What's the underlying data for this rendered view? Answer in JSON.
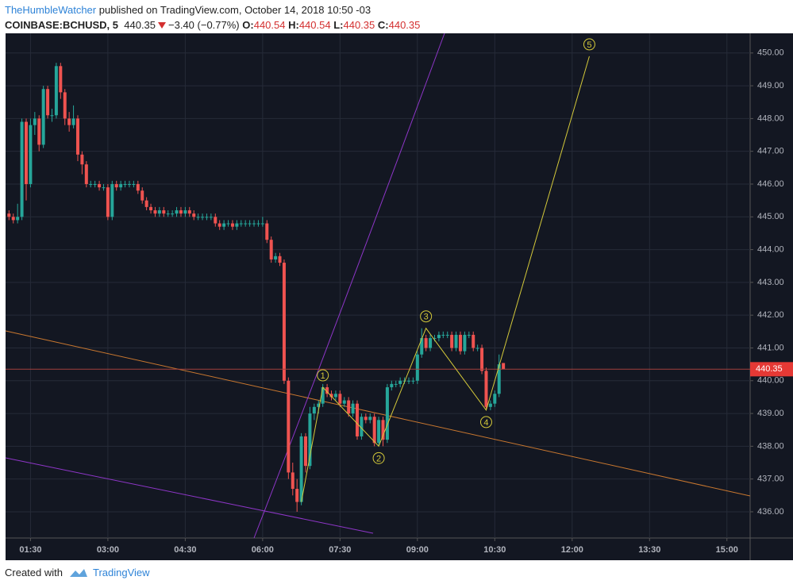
{
  "header": {
    "author": "TheHumbleWatcher",
    "published": "published on TradingView.com, October 14, 2018 10:50 -03",
    "symbol": "COINBASE:BCHUSD, 5",
    "price": 440.35,
    "change": "−3.40 (−0.77%)",
    "ohlc": [
      {
        "label": "O:",
        "value": 440.54
      },
      {
        "label": "H:",
        "value": 440.54
      },
      {
        "label": "L:",
        "value": 440.35
      },
      {
        "label": "C:",
        "value": 440.35
      }
    ]
  },
  "footer": {
    "text": "Created with",
    "brand": "TradingView"
  },
  "chart_data": {
    "type": "candlestick",
    "up_color": "#26a69a",
    "down_color": "#ef5350",
    "grid": true,
    "xlim": [
      61,
      927
    ],
    "ylim": [
      435.2,
      450.6
    ],
    "xticks": [
      {
        "value": 90,
        "label": "01:30"
      },
      {
        "value": 180,
        "label": "03:00"
      },
      {
        "value": 270,
        "label": "04:30"
      },
      {
        "value": 360,
        "label": "06:00"
      },
      {
        "value": 450,
        "label": "07:30"
      },
      {
        "value": 540,
        "label": "09:00"
      },
      {
        "value": 630,
        "label": "10:30"
      },
      {
        "value": 720,
        "label": "12:00"
      },
      {
        "value": 810,
        "label": "13:30"
      },
      {
        "value": 900,
        "label": "15:00"
      }
    ],
    "yticks": [
      {
        "value": 436,
        "label": "436.00"
      },
      {
        "value": 437,
        "label": "437.00"
      },
      {
        "value": 438,
        "label": "438.00"
      },
      {
        "value": 439,
        "label": "439.00"
      },
      {
        "value": 440,
        "label": "440.00"
      },
      {
        "value": 441,
        "label": "441.00"
      },
      {
        "value": 442,
        "label": "442.00"
      },
      {
        "value": 443,
        "label": "443.00"
      },
      {
        "value": 444,
        "label": "444.00"
      },
      {
        "value": 445,
        "label": "445.00"
      },
      {
        "value": 446,
        "label": "446.00"
      },
      {
        "value": 447,
        "label": "447.00"
      },
      {
        "value": 448,
        "label": "448.00"
      },
      {
        "value": 449,
        "label": "449.00"
      },
      {
        "value": 450,
        "label": "450.00"
      }
    ],
    "last_price": 440.35,
    "x": [
      "01:05",
      "01:10",
      "01:15",
      "01:20",
      "01:25",
      "01:30",
      "01:35",
      "01:40",
      "01:45",
      "01:50",
      "01:55",
      "02:00",
      "02:05",
      "02:10",
      "02:15",
      "02:20",
      "02:25",
      "02:30",
      "02:35",
      "02:40",
      "02:45",
      "02:50",
      "02:55",
      "03:00",
      "03:05",
      "03:10",
      "03:15",
      "03:20",
      "03:25",
      "03:30",
      "03:35",
      "03:40",
      "03:45",
      "03:50",
      "03:55",
      "04:00",
      "04:05",
      "04:10",
      "04:15",
      "04:20",
      "04:25",
      "04:30",
      "04:35",
      "04:40",
      "04:45",
      "04:50",
      "04:55",
      "05:00",
      "05:05",
      "05:10",
      "05:15",
      "05:20",
      "05:25",
      "05:30",
      "05:35",
      "05:40",
      "05:45",
      "05:50",
      "05:55",
      "06:00",
      "06:05",
      "06:10",
      "06:15",
      "06:20",
      "06:25",
      "06:30",
      "06:35",
      "06:40",
      "06:45",
      "06:50",
      "06:55",
      "07:00",
      "07:05",
      "07:10",
      "07:15",
      "07:20",
      "07:25",
      "07:30",
      "07:35",
      "07:40",
      "07:45",
      "07:50",
      "07:55",
      "08:00",
      "08:05",
      "08:10",
      "08:15",
      "08:20",
      "08:25",
      "08:30",
      "08:35",
      "08:40",
      "08:45",
      "08:50",
      "08:55",
      "09:00",
      "09:05",
      "09:10",
      "09:15",
      "09:20",
      "09:25",
      "09:30",
      "09:35",
      "09:40",
      "09:45",
      "09:50",
      "09:55",
      "10:00",
      "10:05",
      "10:10",
      "10:15",
      "10:20",
      "10:25",
      "10:30",
      "10:35",
      "10:40"
    ],
    "candles": [
      [
        445.1,
        445.2,
        444.9,
        445.0
      ],
      [
        445.0,
        445.1,
        444.8,
        444.9
      ],
      [
        444.9,
        445.4,
        444.8,
        445.0
      ],
      [
        445.0,
        448.0,
        444.9,
        447.9
      ],
      [
        447.9,
        448.0,
        445.5,
        446.0
      ],
      [
        446.0,
        448.0,
        445.9,
        447.8
      ],
      [
        447.8,
        448.2,
        447.5,
        448.0
      ],
      [
        448.0,
        448.1,
        447.0,
        447.2
      ],
      [
        447.2,
        449.0,
        447.1,
        448.9
      ],
      [
        448.9,
        449.0,
        448.0,
        448.1
      ],
      [
        448.1,
        448.3,
        447.9,
        448.1
      ],
      [
        448.1,
        449.7,
        448.0,
        449.6
      ],
      [
        449.6,
        449.7,
        448.6,
        448.8
      ],
      [
        448.8,
        448.9,
        447.8,
        448.0
      ],
      [
        448.0,
        448.2,
        447.6,
        447.8
      ],
      [
        447.8,
        448.4,
        447.7,
        448.0
      ],
      [
        448.0,
        448.1,
        446.7,
        446.9
      ],
      [
        446.9,
        447.0,
        446.3,
        446.6
      ],
      [
        446.6,
        446.7,
        445.9,
        446.0
      ],
      [
        446.0,
        446.1,
        445.9,
        446.0
      ],
      [
        446.0,
        446.1,
        445.9,
        446.0
      ],
      [
        446.0,
        446.1,
        445.8,
        445.9
      ],
      [
        445.9,
        446.0,
        445.8,
        445.9
      ],
      [
        445.9,
        446.0,
        444.9,
        445.0
      ],
      [
        445.0,
        446.1,
        444.9,
        446.0
      ],
      [
        446.0,
        446.1,
        445.8,
        445.9
      ],
      [
        445.9,
        446.1,
        445.8,
        446.0
      ],
      [
        446.0,
        446.1,
        445.9,
        446.0
      ],
      [
        446.0,
        446.1,
        445.9,
        446.0
      ],
      [
        446.0,
        446.1,
        445.9,
        446.0
      ],
      [
        446.0,
        446.1,
        445.7,
        445.8
      ],
      [
        445.8,
        445.9,
        445.4,
        445.5
      ],
      [
        445.5,
        445.6,
        445.2,
        445.3
      ],
      [
        445.3,
        445.4,
        445.1,
        445.2
      ],
      [
        445.2,
        445.3,
        445.0,
        445.1
      ],
      [
        445.1,
        445.3,
        445.0,
        445.2
      ],
      [
        445.2,
        445.3,
        445.0,
        445.1
      ],
      [
        445.1,
        445.2,
        445.0,
        445.1
      ],
      [
        445.1,
        445.2,
        445.0,
        445.1
      ],
      [
        445.1,
        445.3,
        445.0,
        445.2
      ],
      [
        445.2,
        445.3,
        445.0,
        445.1
      ],
      [
        445.1,
        445.3,
        445.0,
        445.2
      ],
      [
        445.2,
        445.3,
        445.0,
        445.1
      ],
      [
        445.1,
        445.2,
        444.9,
        445.0
      ],
      [
        445.0,
        445.1,
        444.9,
        445.0
      ],
      [
        445.0,
        445.1,
        444.9,
        445.0
      ],
      [
        445.0,
        445.1,
        444.9,
        445.0
      ],
      [
        445.0,
        445.1,
        444.9,
        445.0
      ],
      [
        445.0,
        445.1,
        444.7,
        444.8
      ],
      [
        444.8,
        444.9,
        444.6,
        444.7
      ],
      [
        444.7,
        444.9,
        444.6,
        444.8
      ],
      [
        444.8,
        444.9,
        444.7,
        444.8
      ],
      [
        444.8,
        444.9,
        444.6,
        444.7
      ],
      [
        444.7,
        444.9,
        444.6,
        444.8
      ],
      [
        444.8,
        444.9,
        444.7,
        444.8
      ],
      [
        444.8,
        444.9,
        444.7,
        444.8
      ],
      [
        444.8,
        444.9,
        444.7,
        444.8
      ],
      [
        444.8,
        444.9,
        444.7,
        444.8
      ],
      [
        444.8,
        444.9,
        444.7,
        444.8
      ],
      [
        444.8,
        445.0,
        444.7,
        444.8
      ],
      [
        444.8,
        444.9,
        444.2,
        444.3
      ],
      [
        444.3,
        444.4,
        443.6,
        443.7
      ],
      [
        443.7,
        443.9,
        443.6,
        443.8
      ],
      [
        443.8,
        443.9,
        443.5,
        443.6
      ],
      [
        443.6,
        443.7,
        439.9,
        440.0
      ],
      [
        440.0,
        440.1,
        437.0,
        437.2
      ],
      [
        437.2,
        437.5,
        436.5,
        436.7
      ],
      [
        436.7,
        437.0,
        436.0,
        436.3
      ],
      [
        436.3,
        438.4,
        436.2,
        438.3
      ],
      [
        438.3,
        438.4,
        437.2,
        437.4
      ],
      [
        437.4,
        439.2,
        437.3,
        439.0
      ],
      [
        439.0,
        439.3,
        438.8,
        439.2
      ],
      [
        439.2,
        439.4,
        439.0,
        439.3
      ],
      [
        439.3,
        439.9,
        439.2,
        439.8
      ],
      [
        439.8,
        439.9,
        439.5,
        439.6
      ],
      [
        439.6,
        439.7,
        439.4,
        439.5
      ],
      [
        439.5,
        439.7,
        439.4,
        439.6
      ],
      [
        439.6,
        439.7,
        439.2,
        439.3
      ],
      [
        439.3,
        439.5,
        439.2,
        439.4
      ],
      [
        439.4,
        439.5,
        438.9,
        439.0
      ],
      [
        439.0,
        439.4,
        438.9,
        439.3
      ],
      [
        439.3,
        439.4,
        438.2,
        438.3
      ],
      [
        438.3,
        439.0,
        438.2,
        438.9
      ],
      [
        438.9,
        439.0,
        438.7,
        438.8
      ],
      [
        438.8,
        439.0,
        438.7,
        438.9
      ],
      [
        438.9,
        439.0,
        438.0,
        438.1
      ],
      [
        438.1,
        438.9,
        438.0,
        438.8
      ],
      [
        438.8,
        438.9,
        438.0,
        438.2
      ],
      [
        438.2,
        439.9,
        438.1,
        439.8
      ],
      [
        439.8,
        440.0,
        439.7,
        439.9
      ],
      [
        439.9,
        440.0,
        439.8,
        439.9
      ],
      [
        439.9,
        440.1,
        439.8,
        440.0
      ],
      [
        440.0,
        440.1,
        439.9,
        440.0
      ],
      [
        440.0,
        440.1,
        439.9,
        440.0
      ],
      [
        440.0,
        440.1,
        439.9,
        440.0
      ],
      [
        440.0,
        440.9,
        439.9,
        440.8
      ],
      [
        440.8,
        441.6,
        440.7,
        441.3
      ],
      [
        441.3,
        441.4,
        440.9,
        441.0
      ],
      [
        441.0,
        441.4,
        440.9,
        441.3
      ],
      [
        441.3,
        441.4,
        441.2,
        441.3
      ],
      [
        441.3,
        441.5,
        441.2,
        441.4
      ],
      [
        441.4,
        441.5,
        441.3,
        441.4
      ],
      [
        441.4,
        441.5,
        441.3,
        441.4
      ],
      [
        441.4,
        441.5,
        440.9,
        441.0
      ],
      [
        441.0,
        441.5,
        440.9,
        441.4
      ],
      [
        441.4,
        441.5,
        440.8,
        440.9
      ],
      [
        440.9,
        441.5,
        440.8,
        441.4
      ],
      [
        441.4,
        441.5,
        441.3,
        441.4
      ],
      [
        441.4,
        441.5,
        440.9,
        441.0
      ],
      [
        441.0,
        441.1,
        440.9,
        441.0
      ],
      [
        441.0,
        441.1,
        440.2,
        440.3
      ],
      [
        440.3,
        440.4,
        439.1,
        439.2
      ],
      [
        439.2,
        439.4,
        439.1,
        439.3
      ],
      [
        439.3,
        439.7,
        439.2,
        439.6
      ],
      [
        439.6,
        440.8,
        439.5,
        440.5
      ],
      [
        440.54,
        440.54,
        440.35,
        440.35
      ]
    ],
    "wave": {
      "color": "#d4c93a",
      "x": [
        "06:45",
        "07:10",
        "08:15",
        "09:10",
        "10:20",
        "12:20"
      ],
      "y": [
        436.3,
        439.8,
        438.0,
        441.6,
        439.1,
        449.9
      ],
      "labels": [
        null,
        "1",
        "2",
        "3",
        "4",
        "5"
      ]
    }
  }
}
